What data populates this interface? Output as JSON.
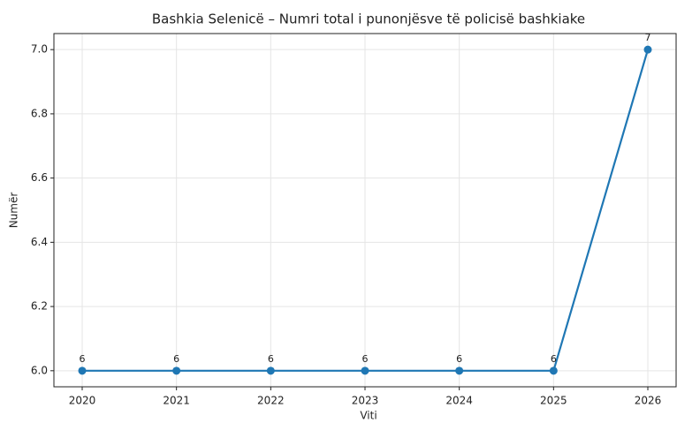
{
  "chart_data": {
    "type": "line",
    "title": "Bashkia Selenicë – Numri total i punonjësve të policisë bashkiake",
    "xlabel": "Viti",
    "ylabel": "Numër",
    "x": [
      2020,
      2021,
      2022,
      2023,
      2024,
      2025,
      2026
    ],
    "series": [
      {
        "name": "Numri total",
        "color": "#1f77b4",
        "values": [
          6,
          6,
          6,
          6,
          6,
          6,
          7
        ]
      }
    ],
    "xlim": [
      2019.7,
      2026.3
    ],
    "xticks": [
      2020,
      2021,
      2022,
      2023,
      2024,
      2025,
      2026
    ],
    "ylim": [
      5.95,
      7.05
    ],
    "yticks": [
      {
        "value": 6.0,
        "label": "6.0"
      },
      {
        "value": 6.2,
        "label": "6.2"
      },
      {
        "value": 6.4,
        "label": "6.4"
      },
      {
        "value": 6.6,
        "label": "6.6"
      },
      {
        "value": 6.8,
        "label": "6.8"
      },
      {
        "value": 7.0,
        "label": "7.0"
      }
    ],
    "grid": true
  }
}
